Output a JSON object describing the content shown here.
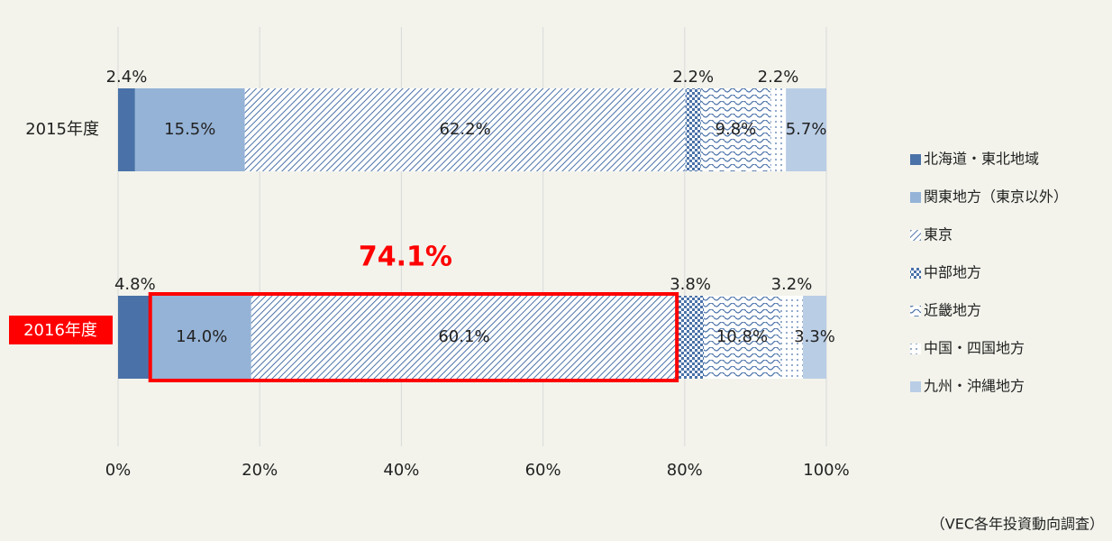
{
  "chart_data": {
    "type": "stacked_barh",
    "categories": [
      "2015年度",
      "2016年度"
    ],
    "series": [
      {
        "name": "北海道・東北地域",
        "color": "#4a72a8",
        "pattern": "solid",
        "values": [
          2.4,
          4.8
        ],
        "value_labels": [
          "2.4%",
          "4.8%"
        ]
      },
      {
        "name": "関東地方（東京以外）",
        "color": "#95b3d7",
        "pattern": "solid",
        "values": [
          15.5,
          14.0
        ],
        "value_labels": [
          "15.5%",
          "14.0%"
        ]
      },
      {
        "name": "東京",
        "color": "#4a72a8",
        "pattern": "diagonal",
        "values": [
          62.2,
          60.1
        ],
        "value_labels": [
          "62.2%",
          "60.1%"
        ]
      },
      {
        "name": "中部地方",
        "color": "#4a72a8",
        "pattern": "checker",
        "values": [
          2.2,
          3.8
        ],
        "value_labels": [
          "2.2%",
          "3.8%"
        ]
      },
      {
        "name": "近畿地方",
        "color": "#4a72a8",
        "pattern": "wave",
        "values": [
          9.8,
          10.8
        ],
        "value_labels": [
          "9.8%",
          "10.8%"
        ]
      },
      {
        "name": "中国・四国地方",
        "color": "#4a72a8",
        "pattern": "dots",
        "values": [
          2.2,
          3.2
        ],
        "value_labels": [
          "2.2%",
          "3.2%"
        ]
      },
      {
        "name": "九州・沖縄地方",
        "color": "#b9cde5",
        "pattern": "solid",
        "values": [
          5.7,
          3.3
        ],
        "value_labels": [
          "5.7%",
          "3.3%"
        ]
      }
    ],
    "xlim": [
      0,
      100
    ],
    "xticks": [
      {
        "value": 0,
        "label": "0%"
      },
      {
        "value": 20,
        "label": "20%"
      },
      {
        "value": 40,
        "label": "40%"
      },
      {
        "value": 60,
        "label": "60%"
      },
      {
        "value": 80,
        "label": "80%"
      },
      {
        "value": 100,
        "label": "100%"
      }
    ],
    "grid": true,
    "legend": "right",
    "highlight": {
      "category": 1,
      "series": [
        1,
        2
      ],
      "color": "#ff0000",
      "annotation": "74.1%"
    },
    "source": "（VEC各年投資動向調査）"
  }
}
